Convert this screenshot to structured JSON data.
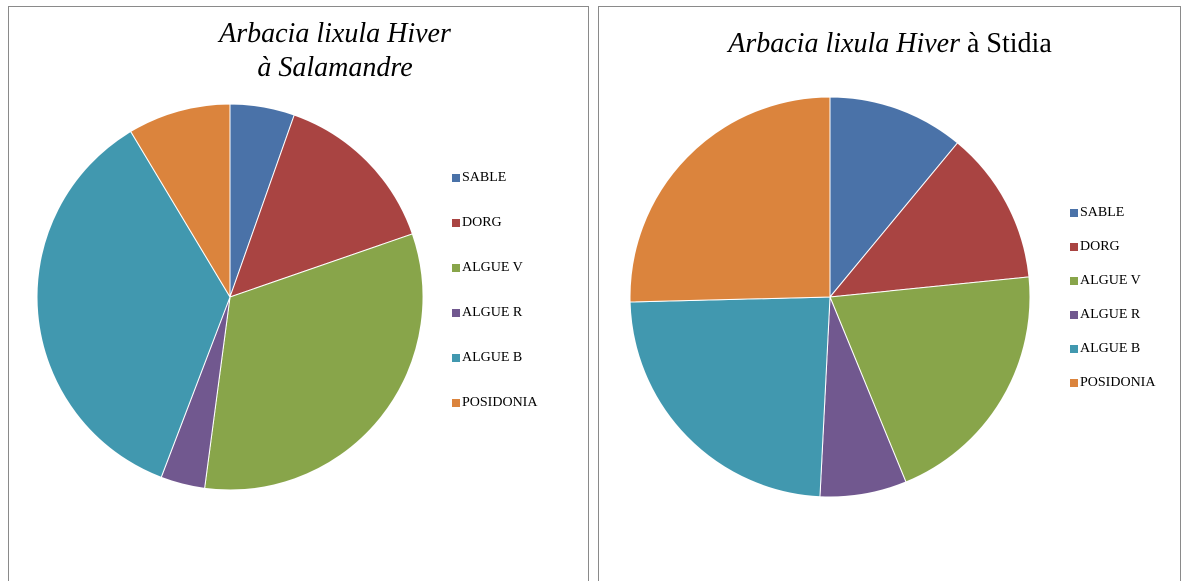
{
  "chart_data": [
    {
      "type": "pie",
      "title": [
        [
          {
            "text": "Arbacia lixula Hiver",
            "italic": true
          }
        ],
        [
          {
            "text": "à Salamandre",
            "italic": true
          }
        ]
      ],
      "categories": [
        "SABLE",
        "DORG",
        "ALGUE V",
        "ALGUE  R",
        "ALGUE B",
        "POSIDONIA"
      ],
      "values": [
        5.4,
        14.3,
        32.4,
        3.7,
        35.6,
        8.6
      ],
      "colors": [
        "#4a72a8",
        "#a94442",
        "#88a54a",
        "#71588f",
        "#4198af",
        "#db843d"
      ]
    },
    {
      "type": "pie",
      "title": [
        [
          {
            "text": "Arbacia lixula  Hiver",
            "italic": true
          },
          {
            "text": "  à Stidia",
            "italic": false
          }
        ]
      ],
      "categories": [
        "SABLE",
        "DORG",
        "ALGUE V",
        "ALGUE  R",
        "ALGUE B",
        "POSIDONIA"
      ],
      "values": [
        11,
        12.4,
        20.4,
        7,
        23.8,
        25.4
      ],
      "colors": [
        "#4a72a8",
        "#a94442",
        "#88a54a",
        "#71588f",
        "#4198af",
        "#db843d"
      ]
    }
  ]
}
